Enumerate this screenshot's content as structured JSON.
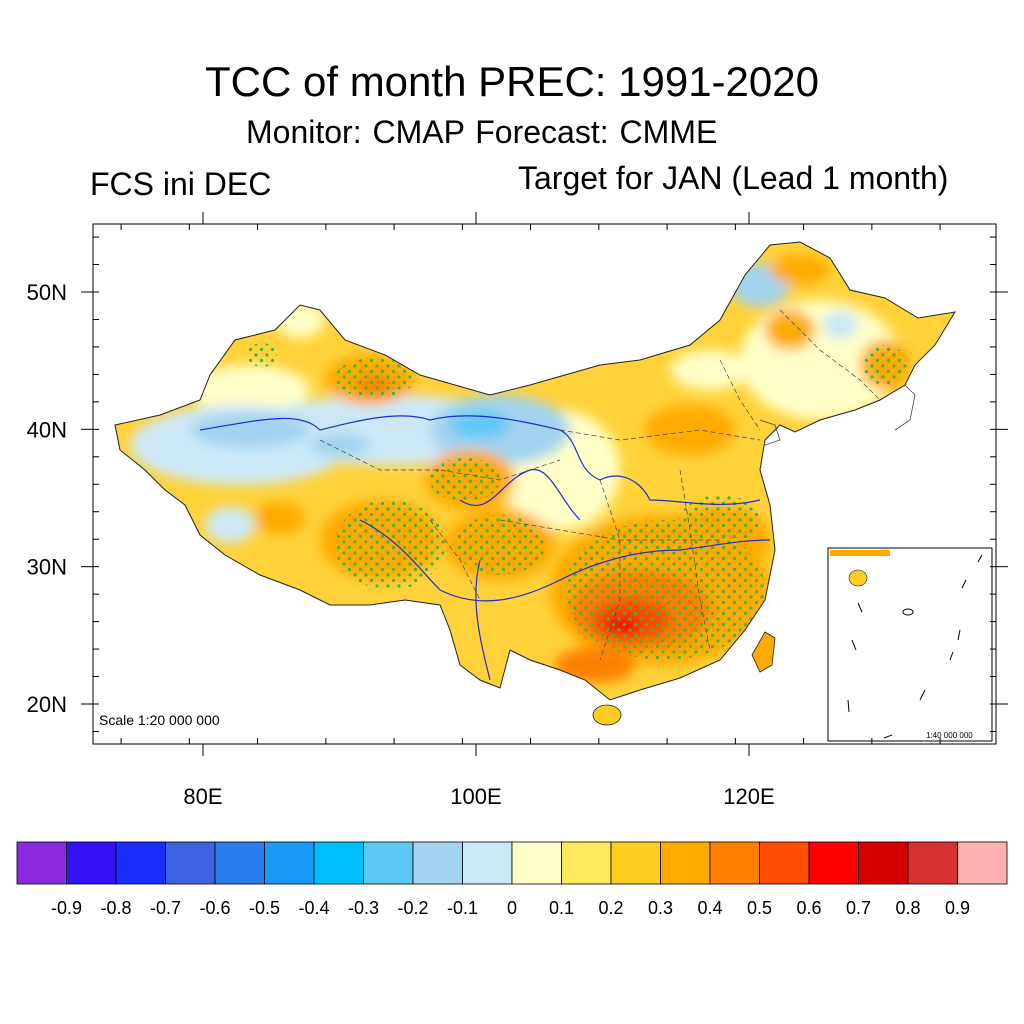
{
  "title": "TCC of month PREC: 1991-2020",
  "subtitle": "Monitor: CMAP   Forecast: CMME",
  "left_label": "FCS ini DEC",
  "right_label": "Target for JAN (Lead 1 month)",
  "map": {
    "region": "China",
    "scale_text": "Scale 1:20 000 000",
    "inset_scale_text": "1:40 000 000",
    "lat_ticks": [
      {
        "value": 50,
        "label": "50N"
      },
      {
        "value": 40,
        "label": "40N"
      },
      {
        "value": 30,
        "label": "30N"
      },
      {
        "value": 20,
        "label": "20N"
      }
    ],
    "lon_ticks": [
      {
        "value": 80,
        "label": "80E"
      },
      {
        "value": 100,
        "label": "100E"
      },
      {
        "value": 120,
        "label": "120E"
      }
    ],
    "extent": {
      "lon_min": 72,
      "lon_max": 138,
      "lat_min": 17,
      "lat_max": 55
    },
    "stipple_meaning": "significant correlation"
  },
  "colorbar": {
    "colors": [
      "#8a2be2",
      "#3410f5",
      "#1a2dfa",
      "#3c64e0",
      "#2a7cf0",
      "#1a9af7",
      "#00bfff",
      "#5ec8f5",
      "#a2d4ef",
      "#cce8f7",
      "#ffffc7",
      "#ffe95e",
      "#ffcc22",
      "#ffaa00",
      "#ff8000",
      "#ff4c00",
      "#ff0000",
      "#d60000",
      "#d93030",
      "#ffb0b0"
    ],
    "labels": [
      "-0.9",
      "-0.8",
      "-0.7",
      "-0.6",
      "-0.5",
      "-0.4",
      "-0.3",
      "-0.2",
      "-0.1",
      "0",
      "0.1",
      "0.2",
      "0.3",
      "0.4",
      "0.5",
      "0.6",
      "0.7",
      "0.8",
      "0.9"
    ]
  }
}
